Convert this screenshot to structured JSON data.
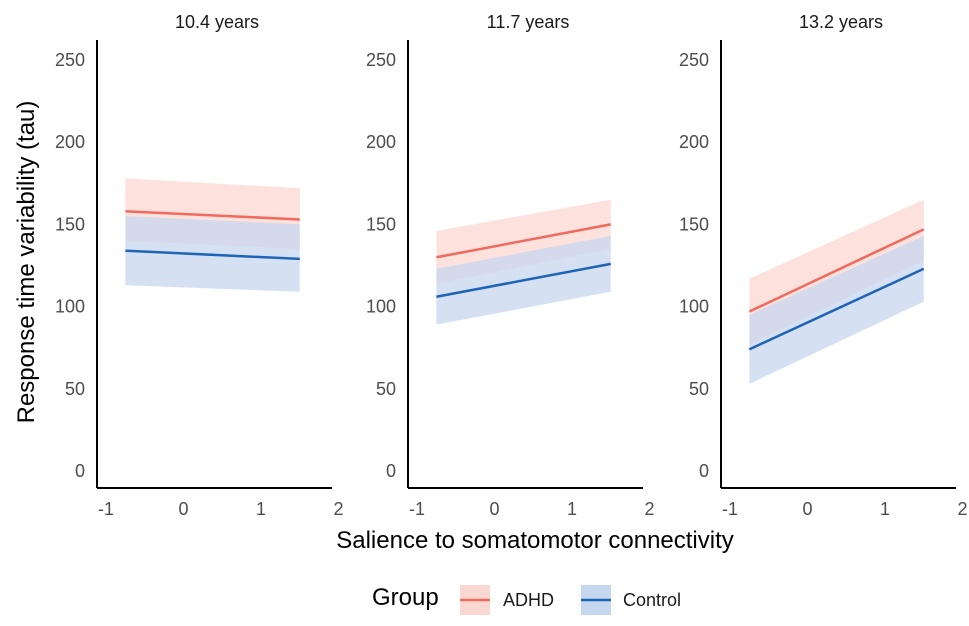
{
  "chart_data": {
    "type": "line",
    "ylabel": "Response time variability (tau)",
    "xlabel": "Salience to somatomotor connectivity",
    "xlim": [
      -1,
      2
    ],
    "ylim": [
      0,
      260
    ],
    "x_ticks": [
      "-1",
      "0",
      "1",
      "2"
    ],
    "y_ticks": [
      "0",
      "50",
      "100",
      "150",
      "200",
      "250"
    ],
    "grid": false,
    "legend": {
      "title": "Group",
      "position": "bottom",
      "entries": [
        "ADHD",
        "Control"
      ]
    },
    "colors": {
      "ADHD_line": "#f06b5e",
      "ADHD_band": "#fbd7d2",
      "Control_line": "#1f63b8",
      "Control_band": "#c7d7ef"
    },
    "panels": [
      {
        "title": "10.4 years",
        "series": [
          {
            "name": "ADHD",
            "x": [
              -0.75,
              1.5
            ],
            "y": [
              158,
              153
            ],
            "lower": [
              140,
              135
            ],
            "upper": [
              178,
              172
            ]
          },
          {
            "name": "Control",
            "x": [
              -0.75,
              1.5
            ],
            "y": [
              134,
              129
            ],
            "lower": [
              113,
              109
            ],
            "upper": [
              155,
              150
            ]
          }
        ]
      },
      {
        "title": "11.7 years",
        "series": [
          {
            "name": "ADHD",
            "x": [
              -0.75,
              1.5
            ],
            "y": [
              130,
              150
            ],
            "lower": [
              114,
              135
            ],
            "upper": [
              146,
              165
            ]
          },
          {
            "name": "Control",
            "x": [
              -0.75,
              1.5
            ],
            "y": [
              106,
              126
            ],
            "lower": [
              89,
              109
            ],
            "upper": [
              123,
              143
            ]
          }
        ]
      },
      {
        "title": "13.2 years",
        "series": [
          {
            "name": "ADHD",
            "x": [
              -0.75,
              1.5
            ],
            "y": [
              97,
              147
            ],
            "lower": [
              77,
              128
            ],
            "upper": [
              117,
              165
            ]
          },
          {
            "name": "Control",
            "x": [
              -0.75,
              1.5
            ],
            "y": [
              74,
              123
            ],
            "lower": [
              53,
              103
            ],
            "upper": [
              95,
              143
            ]
          }
        ]
      }
    ]
  }
}
